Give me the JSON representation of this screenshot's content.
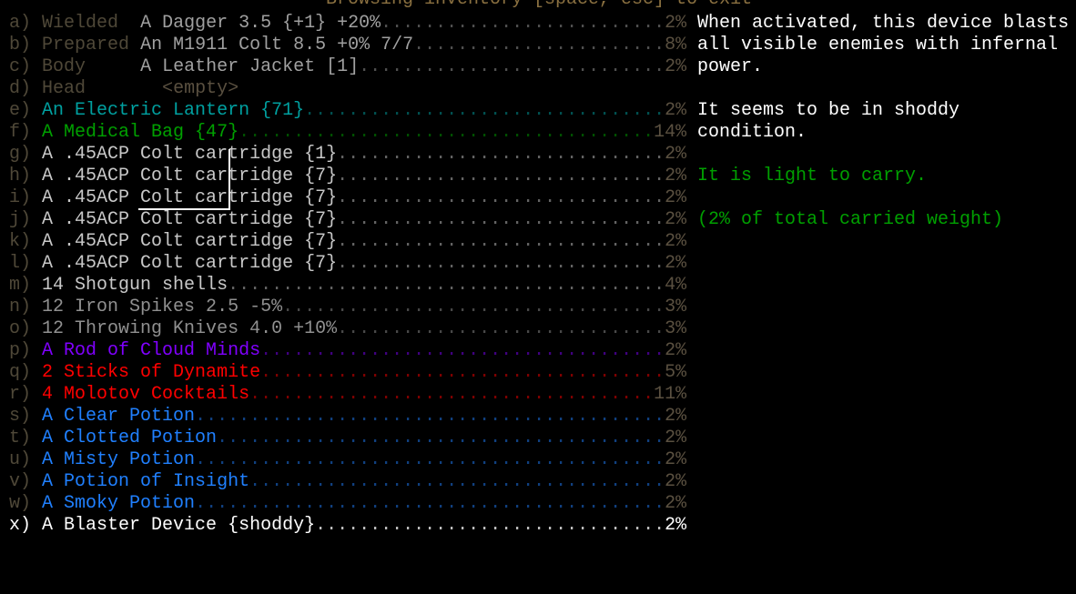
{
  "title": "Browsing inventory [space, esc] to exit",
  "colors": {
    "slot_label": "#4f4838",
    "weight": "#5a5040",
    "title": "#8a7040",
    "selected": "#ffffff"
  },
  "items": [
    {
      "key": "a)",
      "slot": "Wielded",
      "name": "A Dagger 3.5 {+1} +20%",
      "weight": "2%",
      "color": "#a0a0a0",
      "dots": "#505050"
    },
    {
      "key": "b)",
      "slot": "Prepared",
      "name": "An M1911 Colt 8.5 +0% 7/7",
      "weight": "8%",
      "color": "#a0a0a0",
      "dots": "#505050"
    },
    {
      "key": "c)",
      "slot": "Body",
      "name": "A Leather Jacket [1]",
      "weight": "2%",
      "color": "#a0a0a0",
      "dots": "#505050"
    },
    {
      "key": "d)",
      "slot": "Head",
      "name": "<empty>",
      "weight": "",
      "color": "#5a5040",
      "dots": "#000000",
      "indent": 2
    },
    {
      "key": "e)",
      "name": "An Electric Lantern {71}",
      "weight": "2%",
      "color": "#00a0a0",
      "dots": "#005050"
    },
    {
      "key": "f)",
      "name": "A Medical Bag {47}",
      "weight": "14%",
      "color": "#00a000",
      "dots": "#005000"
    },
    {
      "key": "g)",
      "name": "A .45ACP Colt cartridge {1}",
      "weight": "2%",
      "color": "#c8c8c8",
      "dots": "#646464"
    },
    {
      "key": "h)",
      "name": "A .45ACP Colt cartridge {7}",
      "weight": "2%",
      "color": "#c8c8c8",
      "dots": "#646464"
    },
    {
      "key": "i)",
      "name": "A .45ACP Colt cartridge {7}",
      "weight": "2%",
      "color": "#c8c8c8",
      "dots": "#646464"
    },
    {
      "key": "j)",
      "name": "A .45ACP Colt cartridge {7}",
      "weight": "2%",
      "color": "#c8c8c8",
      "dots": "#646464"
    },
    {
      "key": "k)",
      "name": "A .45ACP Colt cartridge {7}",
      "weight": "2%",
      "color": "#c8c8c8",
      "dots": "#646464"
    },
    {
      "key": "l)",
      "name": "A .45ACP Colt cartridge {7}",
      "weight": "2%",
      "color": "#c8c8c8",
      "dots": "#646464"
    },
    {
      "key": "m)",
      "name": "14 Shotgun shells",
      "weight": "4%",
      "color": "#c8c8c8",
      "dots": "#646464"
    },
    {
      "key": "n)",
      "name": "12 Iron Spikes 2.5 -5%",
      "weight": "3%",
      "color": "#909090",
      "dots": "#484848"
    },
    {
      "key": "o)",
      "name": "12 Throwing Knives 4.0 +10%",
      "weight": "3%",
      "color": "#909090",
      "dots": "#484848"
    },
    {
      "key": "p)",
      "name": "A Rod of Cloud Minds",
      "weight": "2%",
      "color": "#8000ff",
      "dots": "#400080"
    },
    {
      "key": "q)",
      "name": "2 Sticks of Dynamite",
      "weight": "5%",
      "color": "#ff0000",
      "dots": "#800000"
    },
    {
      "key": "r)",
      "name": "4 Molotov Cocktails",
      "weight": "11%",
      "color": "#ff0000",
      "dots": "#800000"
    },
    {
      "key": "s)",
      "name": "A Clear Potion",
      "weight": "2%",
      "color": "#2080ff",
      "dots": "#104080"
    },
    {
      "key": "t)",
      "name": "A Clotted Potion",
      "weight": "2%",
      "color": "#2080ff",
      "dots": "#104080"
    },
    {
      "key": "u)",
      "name": "A Misty Potion",
      "weight": "2%",
      "color": "#2080ff",
      "dots": "#104080"
    },
    {
      "key": "v)",
      "name": "A Potion of Insight",
      "weight": "2%",
      "color": "#2080ff",
      "dots": "#104080"
    },
    {
      "key": "w)",
      "name": "A Smoky Potion",
      "weight": "2%",
      "color": "#2080ff",
      "dots": "#104080"
    },
    {
      "key": "x)",
      "name": "A Blaster Device {shoddy}",
      "weight": "2%",
      "color": "#ffffff",
      "dots": "#c0c0c0",
      "selected": true
    }
  ],
  "description": {
    "lines": [
      {
        "text": "When activated, this device blasts",
        "color": "#ffffff"
      },
      {
        "text": "all visible enemies with infernal",
        "color": "#ffffff"
      },
      {
        "text": "power.",
        "color": "#ffffff"
      },
      {
        "text": "",
        "color": "#ffffff"
      },
      {
        "text": "It seems to be in shoddy",
        "color": "#ffffff"
      },
      {
        "text": "condition.",
        "color": "#ffffff"
      },
      {
        "text": "",
        "color": "#ffffff"
      },
      {
        "text": "It is light to carry.",
        "color": "#00a000"
      },
      {
        "text": "",
        "color": "#ffffff"
      },
      {
        "text": "(2% of total carried weight)",
        "color": "#00a000"
      }
    ]
  }
}
